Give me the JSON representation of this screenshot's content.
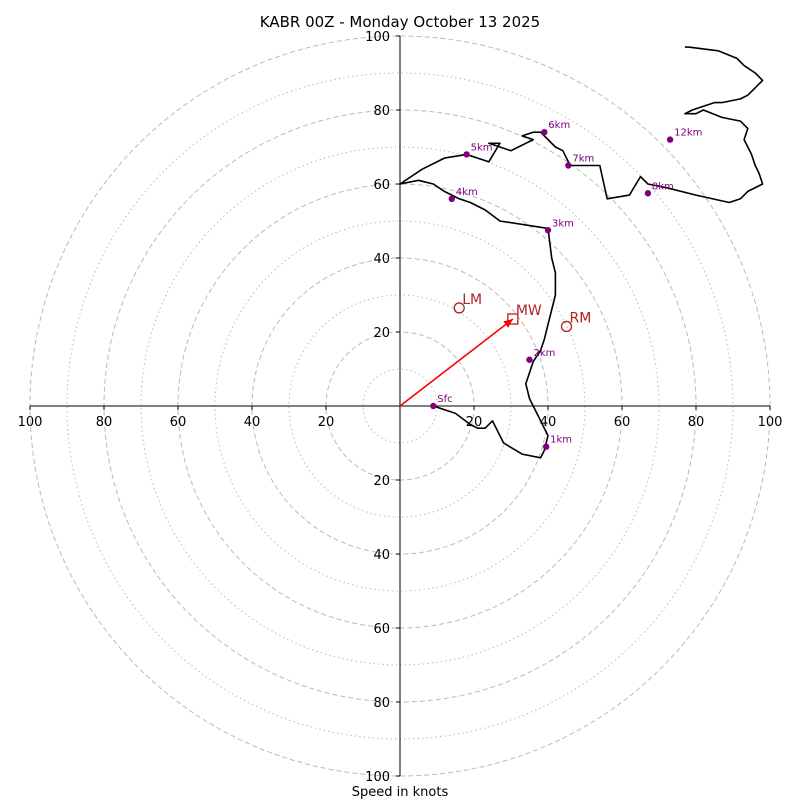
{
  "chart_data": {
    "type": "hodograph",
    "title": "KABR 00Z - Monday October 13 2025",
    "xlabel": "Speed in knots",
    "ylabel": "",
    "xlim": [
      -100,
      100
    ],
    "ylim": [
      -100,
      100
    ],
    "ring_step_major": 20,
    "ring_step_minor": 10,
    "ticks": [
      "100",
      "80",
      "60",
      "40",
      "20",
      "20",
      "40",
      "60",
      "80",
      "100"
    ],
    "grid": true,
    "colors": {
      "trace": "#000000",
      "points": "#800080",
      "motion": "#b22222",
      "mean_wind_vector": "#ff0000",
      "grid": "#bbbbbb",
      "axes": "#000000"
    },
    "trace": {
      "u": [
        9,
        15,
        19,
        21,
        23,
        25,
        28,
        33,
        38,
        39,
        40,
        38,
        37,
        35,
        34,
        35,
        36,
        38,
        39,
        40,
        41,
        42,
        42,
        41,
        40,
        27,
        23,
        19,
        16,
        14,
        12,
        9,
        5,
        0,
        6,
        12,
        18,
        21,
        24,
        27,
        24,
        27,
        30,
        32,
        34,
        36,
        33,
        36,
        38,
        40,
        42,
        44,
        46,
        54,
        56,
        62,
        65,
        67,
        72,
        80,
        89,
        92,
        94,
        98,
        97,
        96,
        95,
        94,
        93,
        94,
        93,
        92,
        87,
        82,
        80,
        77,
        79,
        82,
        85,
        87,
        92,
        94,
        96,
        97,
        98,
        97,
        96,
        93,
        91,
        86,
        78,
        77
      ],
      "v": [
        0,
        -2,
        -5,
        -6,
        -6,
        -4,
        -10,
        -13,
        -14,
        -12,
        -8,
        -4,
        -2,
        2,
        6,
        9,
        12,
        15,
        18,
        22,
        26,
        30,
        36,
        40,
        48,
        50,
        53,
        55,
        56,
        57,
        58,
        60,
        61,
        60,
        64,
        67,
        68,
        67,
        66,
        71,
        71,
        70,
        69,
        70,
        71,
        72,
        73,
        74,
        74,
        72,
        70,
        69,
        65,
        65,
        56,
        57,
        62,
        60,
        59,
        57,
        55,
        56,
        58,
        60,
        63,
        65,
        68,
        70,
        72,
        75,
        76,
        77,
        78,
        80,
        79,
        79,
        80,
        81,
        82,
        82,
        83,
        84,
        86,
        87,
        88,
        89,
        90,
        92,
        94,
        96,
        97,
        97
      ]
    },
    "height_markers": [
      {
        "label": "Sfc",
        "u": 9,
        "v": 0
      },
      {
        "label": "1km",
        "u": 39.5,
        "v": -11
      },
      {
        "label": "2km",
        "u": 35,
        "v": 12.5
      },
      {
        "label": "3km",
        "u": 40,
        "v": 47.5
      },
      {
        "label": "4km",
        "u": 14,
        "v": 56
      },
      {
        "label": "5km",
        "u": 18,
        "v": 68
      },
      {
        "label": "6km",
        "u": 39,
        "v": 74
      },
      {
        "label": "7km",
        "u": 45.5,
        "v": 65
      },
      {
        "label": "8km",
        "u": 67,
        "v": 57.5
      },
      {
        "label": "12km",
        "u": 73,
        "v": 72
      }
    ],
    "storm_motion": [
      {
        "label": "LM",
        "u": 16,
        "v": 26.5,
        "marker": "circle"
      },
      {
        "label": "MW",
        "u": 30.5,
        "v": 23.5,
        "marker": "square"
      },
      {
        "label": "RM",
        "u": 45,
        "v": 21.5,
        "marker": "circle"
      }
    ],
    "mean_wind_vector": {
      "u": 30.5,
      "v": 23.5
    }
  }
}
